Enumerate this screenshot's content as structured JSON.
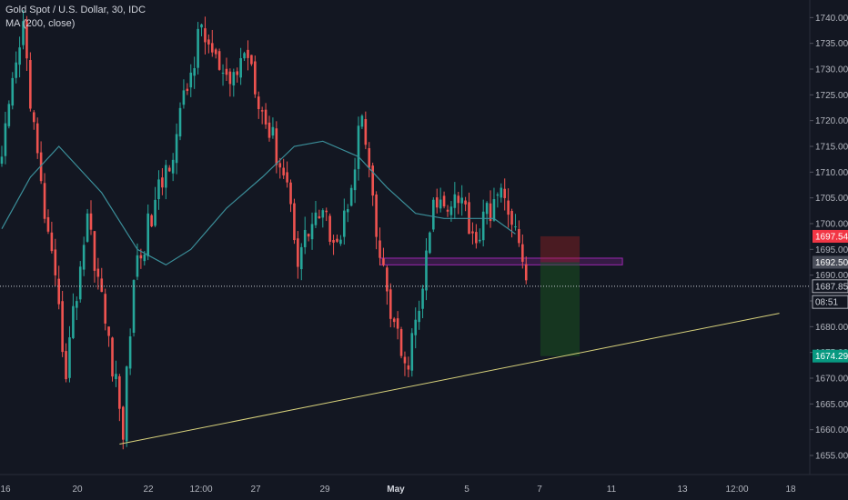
{
  "header": {
    "symbol_line": "Gold Spot / U.S. Dollar, 30, IDC",
    "indicator_line": "MA (200, close)"
  },
  "colors": {
    "background": "#131722",
    "up": "#26a69a",
    "down": "#ef5350",
    "ma": "#3b8f9a",
    "trendline": "#d8d27c",
    "zone_border": "#9c27b0",
    "zone_fill": "rgba(156,39,176,0.25)",
    "stop_fill": "rgba(178,34,34,0.35)",
    "target_fill": "rgba(27,94,32,0.45)",
    "price_red": "#f23645",
    "price_green": "#089981",
    "price_gray": "#4a4e5a"
  },
  "chart_data": {
    "type": "candlestick",
    "title": "Gold Spot / U.S. Dollar, 30, IDC",
    "indicator": "MA (200, close)",
    "y_axis": {
      "ylim": [
        1652,
        1742
      ],
      "ticks": [
        1655,
        1660,
        1665,
        1670,
        1675,
        1680,
        1685,
        1690,
        1695,
        1700,
        1705,
        1710,
        1715,
        1720,
        1725,
        1730,
        1735,
        1740
      ],
      "tick_labels": [
        "1655.00",
        "1660.00",
        "1665.00",
        "1670.00",
        "1675.00",
        "1680.00",
        "1685.00",
        "1690.00",
        "1695.00",
        "1700.00",
        "1705.00",
        "1710.00",
        "1715.00",
        "1720.00",
        "1725.00",
        "1730.00",
        "1735.00",
        "1740.00"
      ]
    },
    "x_axis": {
      "labels": [
        "16",
        "20",
        "22",
        "12:00",
        "27",
        "29",
        "May",
        "5",
        "7",
        "11",
        "13",
        "12:00",
        "18"
      ],
      "bold_labels": [
        "May"
      ]
    },
    "price_labels": [
      {
        "name": "stop",
        "value": 1697.54,
        "text": "1697.54",
        "color": "red"
      },
      {
        "name": "entry",
        "value": 1692.5,
        "text": "1692.50",
        "color": "gray"
      },
      {
        "name": "current",
        "value": 1687.85,
        "text": "1687.85",
        "color": "dark"
      },
      {
        "name": "countdown",
        "value": 1684.8,
        "text": "08:51",
        "color": "dark"
      },
      {
        "name": "target",
        "value": 1674.29,
        "text": "1674.29",
        "color": "green"
      }
    ],
    "current_price": 1687.85,
    "key_points": [
      {
        "x": 0,
        "y": 1713
      },
      {
        "x": 6,
        "y": 1738
      },
      {
        "x": 10,
        "y": 1712
      },
      {
        "x": 18,
        "y": 1672
      },
      {
        "x": 24,
        "y": 1702
      },
      {
        "x": 34,
        "y": 1660
      },
      {
        "x": 37,
        "y": 1690
      },
      {
        "x": 48,
        "y": 1715
      },
      {
        "x": 56,
        "y": 1738
      },
      {
        "x": 63,
        "y": 1726
      },
      {
        "x": 69,
        "y": 1734
      },
      {
        "x": 73,
        "y": 1722
      },
      {
        "x": 80,
        "y": 1708
      },
      {
        "x": 83,
        "y": 1694
      },
      {
        "x": 88,
        "y": 1702
      },
      {
        "x": 95,
        "y": 1697
      },
      {
        "x": 101,
        "y": 1721
      },
      {
        "x": 105,
        "y": 1697
      },
      {
        "x": 109,
        "y": 1683
      },
      {
        "x": 113,
        "y": 1671
      },
      {
        "x": 117,
        "y": 1683
      },
      {
        "x": 121,
        "y": 1703
      },
      {
        "x": 128,
        "y": 1706
      },
      {
        "x": 133,
        "y": 1697
      },
      {
        "x": 138,
        "y": 1705
      },
      {
        "x": 142,
        "y": 1704
      },
      {
        "x": 147,
        "y": 1689
      }
    ],
    "candle_count": 148,
    "ma_points": [
      {
        "x": 0,
        "y": 1699
      },
      {
        "x": 8,
        "y": 1709
      },
      {
        "x": 16,
        "y": 1715
      },
      {
        "x": 28,
        "y": 1706
      },
      {
        "x": 38,
        "y": 1695
      },
      {
        "x": 46,
        "y": 1692
      },
      {
        "x": 53,
        "y": 1695
      },
      {
        "x": 63,
        "y": 1703
      },
      {
        "x": 73,
        "y": 1709
      },
      {
        "x": 82,
        "y": 1715
      },
      {
        "x": 90,
        "y": 1716
      },
      {
        "x": 100,
        "y": 1713
      },
      {
        "x": 108,
        "y": 1707
      },
      {
        "x": 116,
        "y": 1702
      },
      {
        "x": 124,
        "y": 1701
      },
      {
        "x": 132,
        "y": 1701
      },
      {
        "x": 138,
        "y": 1701
      },
      {
        "x": 144,
        "y": 1698
      }
    ],
    "trendline": {
      "x1": 33,
      "y1": 1657.2,
      "x2": 218,
      "y2": 1682.6
    },
    "resistance_zone": {
      "x1": 106,
      "x2": 174,
      "y_low": 1692,
      "y_high": 1693.3
    },
    "position": {
      "x1": 151,
      "x2": 162,
      "entry": 1692.5,
      "stop": 1697.54,
      "target": 1674.29
    }
  }
}
